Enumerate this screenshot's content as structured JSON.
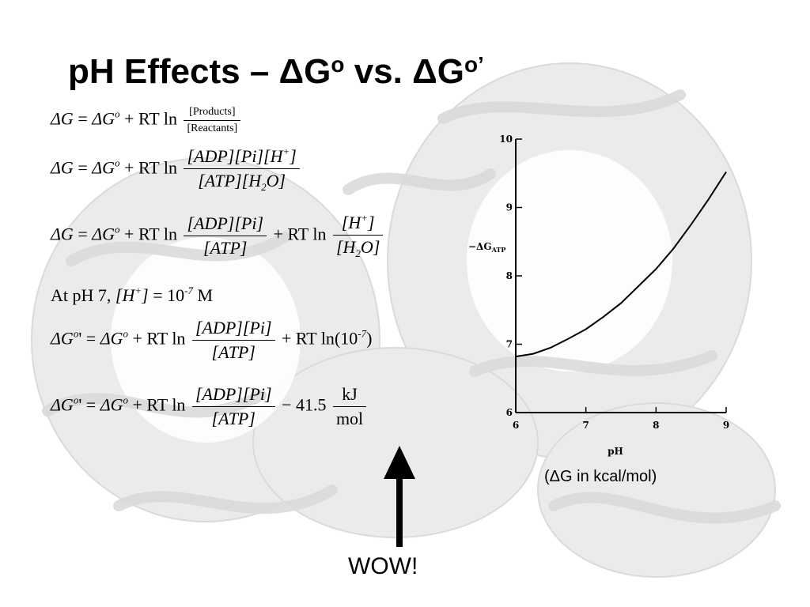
{
  "title": {
    "main": "pH Effects – ΔG",
    "sup1": "o",
    "mid": " vs. ΔG",
    "sup2": "o’"
  },
  "equations": {
    "delta_g": "ΔG",
    "delta_g0": "ΔG",
    "delta_g0p": "ΔG",
    "o": "o",
    "op": "o",
    "prime": "'",
    "eq": " = ",
    "plus_rt_ln": " + RT ln",
    "minus": " − ",
    "products": "[Products]",
    "reactants": "[Reactants]",
    "adp": "ADP",
    "pi": "Pi",
    "h": "H",
    "plus_sup": "+",
    "atp": "ATP",
    "h2o_h": "H",
    "h2o_2": "2",
    "h2o_o": "O",
    "at_ph7": "At pH 7,",
    "ten": "10",
    "neg7": "-7",
    "m": "M",
    "ln": "ln",
    "value": "41.5",
    "kj": "kJ",
    "mol": "mol"
  },
  "annotation": {
    "wow": "WOW!",
    "caption": "(ΔG in kcal/mol)"
  },
  "chart_data": {
    "type": "line",
    "xlabel": "pH",
    "ylabel": "−ΔG",
    "ylabel_sub": "ATP",
    "xlim": [
      6,
      9
    ],
    "ylim": [
      6,
      10
    ],
    "xticks": [
      "6",
      "7",
      "8",
      "9"
    ],
    "yticks": [
      "6",
      "7",
      "8",
      "9",
      "10"
    ],
    "series": [
      {
        "x": [
          6.0,
          6.25,
          6.5,
          6.75,
          7.0,
          7.25,
          7.5,
          7.75,
          8.0,
          8.25,
          8.5,
          8.75,
          9.0
        ],
        "y": [
          6.82,
          6.86,
          6.95,
          7.08,
          7.22,
          7.4,
          7.6,
          7.85,
          8.1,
          8.4,
          8.75,
          9.12,
          9.52
        ]
      }
    ]
  },
  "colors": {
    "background_art": "#e6e6e6",
    "text": "#000000"
  }
}
